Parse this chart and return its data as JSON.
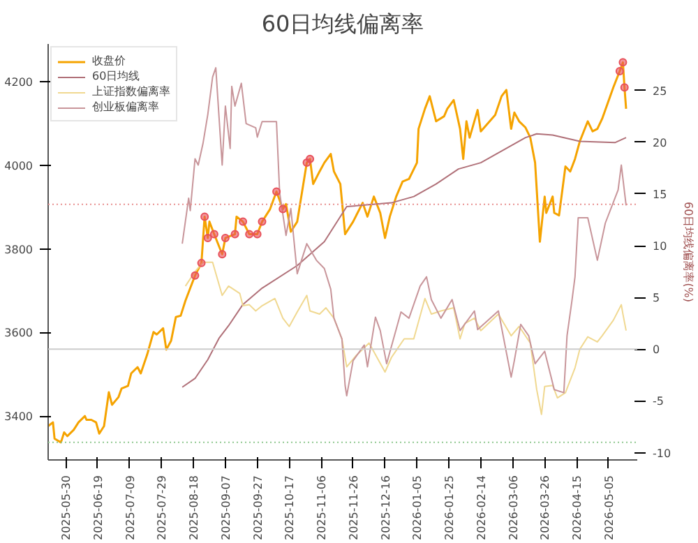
{
  "chart_data": {
    "type": "line",
    "title": "60日均线偏离率",
    "y2label": "60日均线偏离率(%)",
    "xlim": [
      "2025-05-19",
      "2026-05-23"
    ],
    "xticks": [
      "2025-05-30",
      "2025-06-19",
      "2025-07-09",
      "2025-07-29",
      "2025-08-18",
      "2025-09-07",
      "2025-09-27",
      "2025-10-17",
      "2025-11-06",
      "2025-11-26",
      "2025-12-16",
      "2026-01-05",
      "2026-01-25",
      "2026-02-14",
      "2026-03-06",
      "2026-03-26",
      "2026-04-15",
      "2026-05-05"
    ],
    "ylim": [
      3295,
      4290
    ],
    "yticks": [
      3400,
      3600,
      3800,
      4000,
      4200
    ],
    "y2lim": [
      -10.7,
      29.5
    ],
    "y2ticks": [
      -10,
      -5,
      0,
      5,
      10,
      15,
      20,
      25
    ],
    "grid": false,
    "legend": "top left",
    "series": [
      {
        "name": "收盘价",
        "color": "#f5a300",
        "x": [
          "2025-05-19",
          "2025-05-22",
          "2025-05-23",
          "2025-05-27",
          "2025-05-29",
          "2025-05-31",
          "2025-06-04",
          "2025-06-07",
          "2025-06-11",
          "2025-06-12",
          "2025-06-15",
          "2025-06-18",
          "2025-06-20",
          "2025-06-23",
          "2025-06-26",
          "2025-06-28",
          "2025-07-02",
          "2025-07-04",
          "2025-07-08",
          "2025-07-10",
          "2025-07-14",
          "2025-07-16",
          "2025-07-20",
          "2025-07-24",
          "2025-07-26",
          "2025-07-30",
          "2025-08-01",
          "2025-08-04",
          "2025-08-07",
          "2025-08-10",
          "2025-08-13",
          "2025-08-16",
          "2025-08-19",
          "2025-08-23",
          "2025-08-25",
          "2025-08-27",
          "2025-08-28",
          "2025-08-31",
          "2025-09-05",
          "2025-09-07",
          "2025-09-13",
          "2025-09-14",
          "2025-09-18",
          "2025-09-22",
          "2025-09-27",
          "2025-09-30",
          "2025-10-05",
          "2025-10-09",
          "2025-10-13",
          "2025-10-15",
          "2025-10-18",
          "2025-10-22",
          "2025-10-28",
          "2025-10-30",
          "2025-11-01",
          "2025-11-05",
          "2025-11-08",
          "2025-11-12",
          "2025-11-14",
          "2025-11-18",
          "2025-11-21",
          "2025-11-26",
          "2025-12-02",
          "2025-12-05",
          "2025-12-09",
          "2025-12-13",
          "2025-12-16",
          "2025-12-19",
          "2025-12-23",
          "2025-12-27",
          "2025-12-31",
          "2026-01-05",
          "2026-01-06",
          "2026-01-10",
          "2026-01-13",
          "2026-01-17",
          "2026-01-22",
          "2026-01-24",
          "2026-01-28",
          "2026-02-01",
          "2026-02-03",
          "2026-02-05",
          "2026-02-07",
          "2026-02-12",
          "2026-02-14",
          "2026-02-23",
          "2026-02-27",
          "2026-03-02",
          "2026-03-05",
          "2026-03-07",
          "2026-03-10",
          "2026-03-14",
          "2026-03-17",
          "2026-03-20",
          "2026-03-23",
          "2026-03-26",
          "2026-03-27",
          "2026-03-31",
          "2026-04-01",
          "2026-04-04",
          "2026-04-08",
          "2026-04-11",
          "2026-04-14",
          "2026-04-17",
          "2026-04-22",
          "2026-04-25",
          "2026-04-28",
          "2026-05-01",
          "2026-05-08",
          "2026-05-12",
          "2026-05-14",
          "2026-05-15",
          "2026-05-16"
        ],
        "values": [
          3376,
          3385,
          3346,
          3337,
          3361,
          3352,
          3367,
          3385,
          3400,
          3391,
          3391,
          3385,
          3358,
          3376,
          3457,
          3427,
          3445,
          3466,
          3472,
          3502,
          3517,
          3502,
          3547,
          3601,
          3595,
          3610,
          3559,
          3580,
          3637,
          3640,
          3676,
          3706,
          3736,
          3766,
          3877,
          3826,
          3865,
          3835,
          3787,
          3826,
          3835,
          3877,
          3865,
          3835,
          3835,
          3865,
          3895,
          3937,
          3895,
          3907,
          3841,
          3865,
          4006,
          4015,
          3955,
          3985,
          4006,
          4027,
          3985,
          3955,
          3835,
          3865,
          3910,
          3877,
          3925,
          3886,
          3826,
          3877,
          3925,
          3961,
          3967,
          4006,
          4087,
          4135,
          4165,
          4105,
          4117,
          4135,
          4156,
          4087,
          4015,
          4105,
          4066,
          4132,
          4081,
          4120,
          4165,
          4180,
          4087,
          4126,
          4105,
          4090,
          4066,
          4006,
          3817,
          3925,
          3886,
          3925,
          3886,
          3880,
          3997,
          3985,
          4015,
          4057,
          4105,
          4081,
          4087,
          4111,
          4186,
          4225,
          4246,
          4186,
          4135
        ]
      },
      {
        "name": "60日均线",
        "color": "#b07078",
        "x": [
          "2025-08-11",
          "2025-08-19",
          "2025-08-27",
          "2025-09-03",
          "2025-09-09",
          "2025-09-18",
          "2025-09-30",
          "2025-10-22",
          "2025-11-08",
          "2025-11-22",
          "2025-12-20",
          "2026-01-03",
          "2026-01-17",
          "2026-01-31",
          "2026-02-14",
          "2026-02-28",
          "2026-03-14",
          "2026-03-21",
          "2026-03-31",
          "2026-04-17",
          "2026-05-09",
          "2026-05-16"
        ],
        "values": [
          3469,
          3490,
          3535,
          3586,
          3616,
          3667,
          3706,
          3760,
          3817,
          3901,
          3910,
          3925,
          3955,
          3991,
          4006,
          4036,
          4066,
          4075,
          4072,
          4057,
          4054,
          4066
        ]
      },
      {
        "name": "上证指数偏离率",
        "color": "#f0d890",
        "axis": "y2",
        "x": [
          "2025-08-13",
          "2025-08-19",
          "2025-08-24",
          "2025-08-30",
          "2025-09-05",
          "2025-09-09",
          "2025-09-16",
          "2025-09-18",
          "2025-09-22",
          "2025-09-26",
          "2025-09-30",
          "2025-10-08",
          "2025-10-13",
          "2025-10-17",
          "2025-10-22",
          "2025-10-28",
          "2025-10-30",
          "2025-11-05",
          "2025-11-09",
          "2025-11-14",
          "2025-11-19",
          "2025-11-22",
          "2025-11-28",
          "2025-12-06",
          "2025-12-11",
          "2025-12-16",
          "2025-12-20",
          "2025-12-28",
          "2026-01-03",
          "2026-01-10",
          "2026-01-14",
          "2026-01-20",
          "2026-01-28",
          "2026-02-01",
          "2026-02-04",
          "2026-02-10",
          "2026-02-14",
          "2026-02-25",
          "2026-03-05",
          "2026-03-10",
          "2026-03-17",
          "2026-03-21",
          "2026-03-24",
          "2026-03-26",
          "2026-03-31",
          "2026-04-03",
          "2026-04-08",
          "2026-04-14",
          "2026-04-17",
          "2026-04-22",
          "2026-04-28",
          "2026-05-01",
          "2026-05-08",
          "2026-05-13",
          "2026-05-14",
          "2026-05-16"
        ],
        "values": [
          6.1,
          7.5,
          8.4,
          8.4,
          5.2,
          6.1,
          5.4,
          4.2,
          4.3,
          3.7,
          4.2,
          4.9,
          3.0,
          2.2,
          3.6,
          5.2,
          3.7,
          3.4,
          4.0,
          3.0,
          1.0,
          -1.7,
          -0.6,
          0.6,
          -0.8,
          -2.2,
          -0.8,
          1.0,
          1.0,
          4.9,
          3.4,
          3.7,
          4.0,
          1.0,
          2.5,
          3.0,
          1.8,
          3.4,
          1.3,
          2.2,
          0.6,
          -3.9,
          -6.3,
          -3.6,
          -3.5,
          -4.7,
          -4.2,
          -1.8,
          0.0,
          1.2,
          0.7,
          1.3,
          2.8,
          4.3,
          3.4,
          1.8
        ]
      },
      {
        "name": "创业板偏离率",
        "color": "#c8959a",
        "axis": "y2",
        "x": [
          "2025-08-11",
          "2025-08-15",
          "2025-08-16",
          "2025-08-19",
          "2025-08-21",
          "2025-08-24",
          "2025-08-27",
          "2025-08-30",
          "2025-09-01",
          "2025-09-05",
          "2025-09-07",
          "2025-09-10",
          "2025-09-11",
          "2025-09-13",
          "2025-09-17",
          "2025-09-20",
          "2025-09-26",
          "2025-09-27",
          "2025-09-30",
          "2025-10-09",
          "2025-10-11",
          "2025-10-15",
          "2025-10-18",
          "2025-10-22",
          "2025-10-28",
          "2025-11-03",
          "2025-11-08",
          "2025-11-12",
          "2025-11-14",
          "2025-11-19",
          "2025-11-21",
          "2025-11-22",
          "2025-11-26",
          "2025-12-03",
          "2025-12-05",
          "2025-12-10",
          "2025-12-13",
          "2025-12-17",
          "2025-12-26",
          "2025-12-31",
          "2026-01-07",
          "2026-01-11",
          "2026-01-14",
          "2026-01-20",
          "2026-01-27",
          "2026-02-01",
          "2026-02-10",
          "2026-02-12",
          "2026-02-25",
          "2026-03-05",
          "2026-03-07",
          "2026-03-11",
          "2026-03-16",
          "2026-03-20",
          "2026-03-26",
          "2026-04-01",
          "2026-04-07",
          "2026-04-09",
          "2026-04-12",
          "2026-04-14",
          "2026-04-16",
          "2026-04-22",
          "2026-04-28",
          "2026-05-03",
          "2026-05-11",
          "2026-05-13",
          "2026-05-16"
        ],
        "values": [
          10.2,
          14.6,
          13.4,
          18.4,
          17.8,
          19.9,
          22.7,
          26.3,
          27.2,
          17.8,
          23.5,
          19.4,
          25.4,
          23.5,
          25.7,
          21.8,
          21.4,
          20.5,
          22.0,
          22.0,
          15.1,
          11.0,
          13.6,
          7.3,
          10.2,
          8.6,
          7.8,
          5.8,
          3.0,
          1.0,
          -3.5,
          -4.5,
          -1.1,
          0.4,
          -1.7,
          3.1,
          1.8,
          -1.4,
          3.6,
          3.0,
          6.1,
          7.0,
          4.8,
          3.0,
          4.8,
          1.8,
          3.7,
          1.9,
          3.7,
          -2.7,
          -1.1,
          2.4,
          1.3,
          -1.4,
          -0.2,
          -3.9,
          -4.2,
          1.3,
          4.6,
          7.0,
          12.7,
          12.7,
          8.6,
          12.2,
          15.4,
          17.8,
          13.9
        ]
      },
      {
        "color": "#e8505a",
        "type": "scatter",
        "marker": "circle",
        "x": [
          "2025-08-19",
          "2025-08-23",
          "2025-08-25",
          "2025-08-27",
          "2025-08-31",
          "2025-09-05",
          "2025-09-07",
          "2025-09-13",
          "2025-09-18",
          "2025-09-22",
          "2025-09-27",
          "2025-09-30",
          "2025-10-09",
          "2025-10-13",
          "2025-10-28",
          "2025-10-30",
          "2026-05-12",
          "2026-05-14",
          "2026-05-15"
        ],
        "values": [
          3736,
          3766,
          3877,
          3826,
          3835,
          3787,
          3826,
          3835,
          3865,
          3835,
          3835,
          3865,
          3937,
          3895,
          4006,
          4015,
          4225,
          4246,
          4186
        ]
      }
    ],
    "ref_lines": [
      {
        "axis": "y2",
        "value": 14,
        "color": "#e89090",
        "line_style": "dotted"
      },
      {
        "axis": "y2",
        "value": 0,
        "color": "#cccccc",
        "line_style": "solid"
      },
      {
        "axis": "y2",
        "value": -9,
        "color": "#90c890",
        "line_style": "dotted"
      }
    ]
  }
}
